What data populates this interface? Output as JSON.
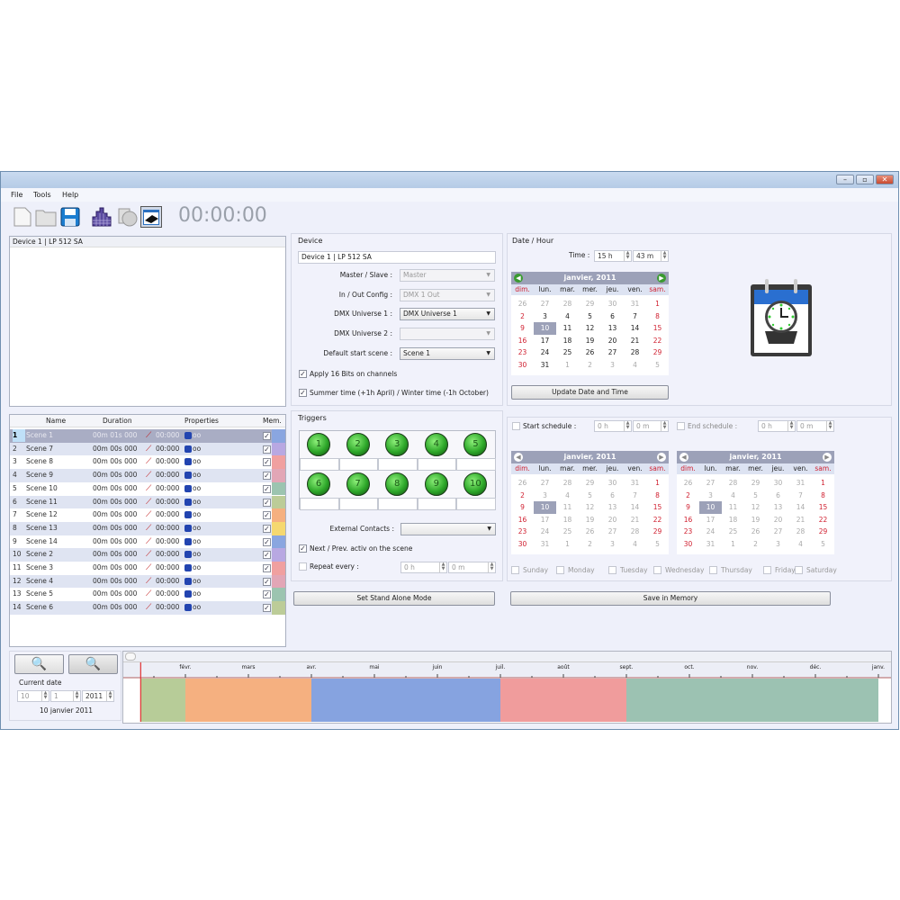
{
  "window": {
    "controls": [
      "–",
      "▫",
      "✕"
    ]
  },
  "menu": [
    "File",
    "Tools",
    "Help"
  ],
  "toolbar": {
    "icons": [
      "new-file-icon",
      "open-folder-icon",
      "save-icon",
      "grid-icon",
      "layers-icon",
      "device-icon"
    ],
    "clock": "00:00:00"
  },
  "device_list": {
    "items": [
      "Device 1 | LP 512 SA"
    ]
  },
  "scenes": {
    "headers": [
      "Name",
      "Duration",
      "Properties",
      "Mem."
    ],
    "rows": [
      {
        "n": "1",
        "name": "Scene 1",
        "dur": "00m 01s 000",
        "time": "00:000",
        "loop": "oo",
        "mem": true,
        "color": "#8aa6e0"
      },
      {
        "n": "2",
        "name": "Scene 7",
        "dur": "00m 00s 000",
        "time": "00:000",
        "loop": "oo",
        "mem": true,
        "color": "#b8a8e2"
      },
      {
        "n": "3",
        "name": "Scene 8",
        "dur": "00m 00s 000",
        "time": "00:000",
        "loop": "oo",
        "mem": true,
        "color": "#f0a0a0"
      },
      {
        "n": "4",
        "name": "Scene 9",
        "dur": "00m 00s 000",
        "time": "00:000",
        "loop": "oo",
        "mem": true,
        "color": "#e2a6b6"
      },
      {
        "n": "5",
        "name": "Scene 10",
        "dur": "00m 00s 000",
        "time": "00:000",
        "loop": "oo",
        "mem": true,
        "color": "#9cc4b0"
      },
      {
        "n": "6",
        "name": "Scene 11",
        "dur": "00m 00s 000",
        "time": "00:000",
        "loop": "oo",
        "mem": true,
        "color": "#bccc98"
      },
      {
        "n": "7",
        "name": "Scene 12",
        "dur": "00m 00s 000",
        "time": "00:000",
        "loop": "oo",
        "mem": true,
        "color": "#f5b080"
      },
      {
        "n": "8",
        "name": "Scene 13",
        "dur": "00m 00s 000",
        "time": "00:000",
        "loop": "oo",
        "mem": true,
        "color": "#f5d870"
      },
      {
        "n": "9",
        "name": "Scene 14",
        "dur": "00m 00s 000",
        "time": "00:000",
        "loop": "oo",
        "mem": true,
        "color": "#8aa6e0"
      },
      {
        "n": "10",
        "name": "Scene 2",
        "dur": "00m 00s 000",
        "time": "00:000",
        "loop": "oo",
        "mem": true,
        "color": "#b8a8e2"
      },
      {
        "n": "11",
        "name": "Scene 3",
        "dur": "00m 00s 000",
        "time": "00:000",
        "loop": "oo",
        "mem": true,
        "color": "#f0a0a0"
      },
      {
        "n": "12",
        "name": "Scene 4",
        "dur": "00m 00s 000",
        "time": "00:000",
        "loop": "oo",
        "mem": true,
        "color": "#e2a6b6"
      },
      {
        "n": "13",
        "name": "Scene 5",
        "dur": "00m 00s 000",
        "time": "00:000",
        "loop": "oo",
        "mem": true,
        "color": "#9cc4b0"
      },
      {
        "n": "14",
        "name": "Scene 6",
        "dur": "00m 00s 000",
        "time": "00:000",
        "loop": "oo",
        "mem": true,
        "color": "#bccc98"
      }
    ]
  },
  "device": {
    "title": "Device",
    "name": "Device 1 | LP 512 SA",
    "master_label": "Master / Slave :",
    "master_value": "Master",
    "io_label": "In / Out Config :",
    "io_value": "DMX 1 Out",
    "u1_label": "DMX Universe 1 :",
    "u1_value": "DMX Universe 1",
    "u2_label": "DMX Universe 2 :",
    "u2_value": "",
    "scene_label": "Default start scene :",
    "scene_value": "Scene 1",
    "bits_label": "Apply 16 Bits on channels",
    "bits_checked": true,
    "summer_label": "Summer time (+1h April) / Winter time (-1h October)",
    "summer_checked": true
  },
  "triggers": {
    "title": "Triggers",
    "buttons": [
      "1",
      "2",
      "3",
      "4",
      "5",
      "6",
      "7",
      "8",
      "9",
      "10"
    ],
    "ext_label": "External Contacts :",
    "ext_value": "",
    "next_label": "Next / Prev. activ on the scene",
    "next_checked": true,
    "repeat_label": "Repeat every :",
    "repeat_checked": false,
    "repeat_h": "0 h",
    "repeat_m": "0 m",
    "standalone_button": "Set Stand Alone Mode"
  },
  "datehour": {
    "title": "Date / Hour",
    "time_label": "Time :",
    "hour": "15 h",
    "minute": "43 m",
    "update_button": "Update Date and Time"
  },
  "calendar": {
    "month": "janvier",
    "year": "2011",
    "dow": [
      "dim.",
      "lun.",
      "mar.",
      "mer.",
      "jeu.",
      "ven.",
      "sam."
    ],
    "weeks": [
      [
        "26",
        "27",
        "28",
        "29",
        "30",
        "31",
        "1"
      ],
      [
        "2",
        "3",
        "4",
        "5",
        "6",
        "7",
        "8"
      ],
      [
        "9",
        "10",
        "11",
        "12",
        "13",
        "14",
        "15"
      ],
      [
        "16",
        "17",
        "18",
        "19",
        "20",
        "21",
        "22"
      ],
      [
        "23",
        "24",
        "25",
        "26",
        "27",
        "28",
        "29"
      ],
      [
        "30",
        "31",
        "1",
        "2",
        "3",
        "4",
        "5"
      ]
    ],
    "selected": "10"
  },
  "schedule": {
    "start_label": "Start schedule :",
    "start_checked": false,
    "start_h": "0 h",
    "start_m": "0 m",
    "end_label": "End schedule :",
    "end_checked": false,
    "end_h": "0 h",
    "end_m": "0 m",
    "days": [
      "Sunday",
      "Monday",
      "Tuesday",
      "Wednesday",
      "Thursday",
      "Friday",
      "Saturday"
    ],
    "save_button": "Save in Memory"
  },
  "timeline": {
    "current_date_label": "Current date",
    "day": "10",
    "month": "1",
    "year": "2011",
    "current_date_text": "10 janvier 2011",
    "months": [
      "févr.",
      "mars",
      "avr.",
      "mai",
      "juin",
      "juil.",
      "août",
      "sept.",
      "oct.",
      "nov.",
      "déc.",
      "janv."
    ],
    "current_marker": "2011-01-10",
    "segments": [
      {
        "start": "2011-01-10",
        "end": "2011-02-01",
        "color": "#b7cc98"
      },
      {
        "start": "2011-02-01",
        "end": "2011-04-01",
        "color": "#f5b080"
      },
      {
        "start": "2011-04-01",
        "end": "2011-07-01",
        "color": "#86a3e0"
      },
      {
        "start": "2011-07-01",
        "end": "2011-09-01",
        "color": "#f09c9c"
      },
      {
        "start": "2011-09-01",
        "end": "2012-01-01",
        "color": "#9cc2b2"
      }
    ]
  }
}
